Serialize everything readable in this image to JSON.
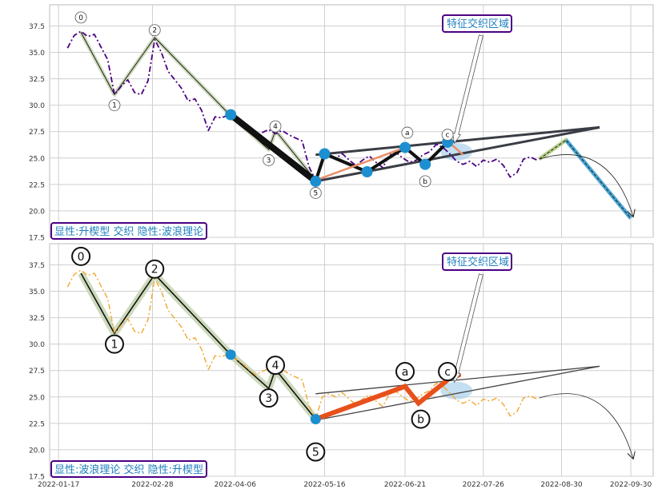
{
  "chart_data": [
    {
      "type": "line",
      "panel": "top",
      "x_ticks": [],
      "y_ticks": [
        "17.5",
        "20.0",
        "22.5",
        "25.0",
        "27.5",
        "30.0",
        "32.5",
        "35.0",
        "37.5"
      ],
      "ylim": [
        17.5,
        39.5
      ],
      "xlim": [
        "2022-01-13",
        "2022-10-10"
      ],
      "grid": true,
      "caption": "显性:升楔型 交织 隐性:波浪理论",
      "annotation": "特征交织区域",
      "price_series": {
        "color": "#4b0082",
        "style": "dashdot",
        "points": [
          [
            "2022-01-21",
            35.4
          ],
          [
            "2022-01-24",
            36.6
          ],
          [
            "2022-01-27",
            37.0
          ],
          [
            "2022-01-30",
            36.5
          ],
          [
            "2022-02-02",
            36.7
          ],
          [
            "2022-02-05",
            35.5
          ],
          [
            "2022-02-08",
            34.3
          ],
          [
            "2022-02-11",
            31.0
          ],
          [
            "2022-02-14",
            31.8
          ],
          [
            "2022-02-17",
            32.4
          ],
          [
            "2022-02-20",
            31.2
          ],
          [
            "2022-02-23",
            31.0
          ],
          [
            "2022-02-26",
            32.3
          ],
          [
            "2022-03-01",
            36.2
          ],
          [
            "2022-03-04",
            35.0
          ],
          [
            "2022-03-07",
            33.2
          ],
          [
            "2022-03-10",
            32.4
          ],
          [
            "2022-03-13",
            31.6
          ],
          [
            "2022-03-16",
            30.4
          ],
          [
            "2022-03-19",
            30.6
          ],
          [
            "2022-03-22",
            29.5
          ],
          [
            "2022-03-25",
            27.6
          ],
          [
            "2022-03-28",
            28.9
          ],
          [
            "2022-03-31",
            28.8
          ],
          [
            "2022-04-03",
            29.1
          ],
          [
            "2022-04-06",
            28.6
          ],
          [
            "2022-04-09",
            28.2
          ],
          [
            "2022-04-12",
            27.6
          ],
          [
            "2022-04-15",
            27.1
          ],
          [
            "2022-04-18",
            27.4
          ],
          [
            "2022-04-21",
            27.7
          ],
          [
            "2022-04-24",
            27.3
          ],
          [
            "2022-04-27",
            27.6
          ],
          [
            "2022-04-30",
            27.2
          ],
          [
            "2022-05-03",
            26.9
          ],
          [
            "2022-05-06",
            26.6
          ],
          [
            "2022-05-09",
            24.2
          ],
          [
            "2022-05-12",
            22.9
          ],
          [
            "2022-05-15",
            25.0
          ],
          [
            "2022-05-18",
            25.3
          ],
          [
            "2022-05-21",
            25.0
          ],
          [
            "2022-05-24",
            25.4
          ],
          [
            "2022-05-27",
            24.8
          ],
          [
            "2022-05-30",
            24.3
          ],
          [
            "2022-06-02",
            24.8
          ],
          [
            "2022-06-05",
            25.2
          ],
          [
            "2022-06-08",
            24.6
          ],
          [
            "2022-06-11",
            24.1
          ],
          [
            "2022-06-14",
            25.3
          ],
          [
            "2022-06-17",
            25.5
          ],
          [
            "2022-06-20",
            25.0
          ],
          [
            "2022-06-23",
            24.6
          ],
          [
            "2022-06-26",
            24.8
          ],
          [
            "2022-06-29",
            25.3
          ],
          [
            "2022-07-02",
            25.6
          ],
          [
            "2022-07-05",
            26.3
          ],
          [
            "2022-07-08",
            26.0
          ],
          [
            "2022-07-11",
            25.4
          ],
          [
            "2022-07-14",
            24.7
          ],
          [
            "2022-07-17",
            24.4
          ],
          [
            "2022-07-20",
            24.7
          ],
          [
            "2022-07-23",
            24.2
          ],
          [
            "2022-07-26",
            24.8
          ],
          [
            "2022-07-29",
            24.6
          ],
          [
            "2022-08-01",
            24.9
          ],
          [
            "2022-08-04",
            24.3
          ],
          [
            "2022-08-07",
            23.2
          ],
          [
            "2022-08-10",
            23.6
          ],
          [
            "2022-08-13",
            24.9
          ],
          [
            "2022-08-16",
            25.1
          ],
          [
            "2022-08-19",
            24.8
          ]
        ]
      },
      "wave_labels": [
        {
          "text": "0",
          "x": "2022-01-27",
          "y": 38.3
        },
        {
          "text": "1",
          "x": "2022-02-11",
          "y": 30.0
        },
        {
          "text": "2",
          "x": "2022-03-01",
          "y": 37.1
        },
        {
          "text": "3",
          "x": "2022-04-21",
          "y": 24.8
        },
        {
          "text": "4",
          "x": "2022-04-24",
          "y": 28.0
        },
        {
          "text": "5",
          "x": "2022-05-12",
          "y": 21.7
        },
        {
          "text": "a",
          "x": "2022-06-22",
          "y": 27.4
        },
        {
          "text": "b",
          "x": "2022-06-30",
          "y": 22.8
        },
        {
          "text": "c",
          "x": "2022-07-10",
          "y": 27.2
        }
      ],
      "elliott_path": [
        [
          "2022-01-27",
          36.9
        ],
        [
          "2022-02-11",
          31.0
        ],
        [
          "2022-03-01",
          36.4
        ],
        [
          "2022-04-04",
          29.0
        ],
        [
          "2022-04-21",
          25.8
        ],
        [
          "2022-04-24",
          27.6
        ],
        [
          "2022-05-12",
          22.9
        ]
      ],
      "thick_segments": [
        [
          [
            "2022-04-04",
            29.1
          ],
          [
            "2022-05-12",
            22.8
          ]
        ],
        [
          [
            "2022-05-12",
            22.8
          ],
          [
            "2022-05-16",
            25.4
          ]
        ],
        [
          [
            "2022-05-16",
            25.4
          ],
          [
            "2022-06-04",
            23.7
          ]
        ],
        [
          [
            "2022-06-04",
            23.7
          ],
          [
            "2022-06-21",
            26.0
          ]
        ],
        [
          [
            "2022-06-21",
            26.0
          ],
          [
            "2022-06-30",
            24.4
          ]
        ],
        [
          [
            "2022-06-30",
            24.4
          ],
          [
            "2022-07-10",
            26.5
          ]
        ]
      ],
      "orange_segments": [
        [
          [
            "2022-05-12",
            22.9
          ],
          [
            "2022-06-21",
            26.0
          ]
        ],
        [
          [
            "2022-07-10",
            26.6
          ],
          [
            "2022-07-17",
            25.3
          ]
        ]
      ],
      "blue_dots": [
        [
          "2022-04-04",
          29.1
        ],
        [
          "2022-05-12",
          22.8
        ],
        [
          "2022-05-16",
          25.4
        ],
        [
          "2022-06-04",
          23.7
        ],
        [
          "2022-06-21",
          26.0
        ],
        [
          "2022-06-30",
          24.4
        ],
        [
          "2022-07-10",
          26.5
        ]
      ],
      "wedge_lines": [
        [
          [
            "2022-05-12",
            25.3
          ],
          [
            "2022-09-16",
            27.9
          ]
        ],
        [
          [
            "2022-05-12",
            22.8
          ],
          [
            "2022-09-16",
            27.9
          ]
        ]
      ],
      "highlight_ellipse": {
        "x": "2022-07-14",
        "y": 25.6
      },
      "projection": [
        [
          "2022-08-20",
          24.9
        ],
        [
          "2022-09-01",
          26.7
        ],
        [
          "2022-09-30",
          19.3
        ]
      ],
      "curve_arrow": {
        "from": [
          "2022-08-20",
          24.9
        ],
        "control": [
          "2022-09-20",
          25.4
        ],
        "to": [
          "2022-10-01",
          19.5
        ]
      },
      "label_arrow": {
        "from": [
          "2022-07-25",
          36.6
        ],
        "to": [
          "2022-07-13",
          26.4
        ]
      }
    },
    {
      "type": "line",
      "panel": "bottom",
      "x_ticks": [
        "2022-01-17",
        "2022-02-28",
        "2022-04-06",
        "2022-05-16",
        "2022-06-21",
        "2022-07-26",
        "2022-08-30",
        "2022-09-30"
      ],
      "y_ticks": [
        "17.5",
        "20.0",
        "22.5",
        "25.0",
        "27.5",
        "30.0",
        "32.5",
        "35.0",
        "37.5"
      ],
      "ylim": [
        17.5,
        39.5
      ],
      "xlim": [
        "2022-01-13",
        "2022-10-10"
      ],
      "grid": true,
      "caption": "显性:波浪理论 交织 隐性:升楔型",
      "annotation": "特征交织区域",
      "price_series": {
        "color": "#f0a830",
        "style": "dashdot",
        "points": [
          [
            "2022-01-21",
            35.4
          ],
          [
            "2022-01-24",
            36.6
          ],
          [
            "2022-01-27",
            37.0
          ],
          [
            "2022-01-30",
            36.5
          ],
          [
            "2022-02-02",
            36.7
          ],
          [
            "2022-02-05",
            35.5
          ],
          [
            "2022-02-08",
            34.3
          ],
          [
            "2022-02-11",
            31.0
          ],
          [
            "2022-02-14",
            31.8
          ],
          [
            "2022-02-17",
            32.4
          ],
          [
            "2022-02-20",
            31.2
          ],
          [
            "2022-02-23",
            31.0
          ],
          [
            "2022-02-26",
            32.3
          ],
          [
            "2022-03-01",
            36.2
          ],
          [
            "2022-03-04",
            35.0
          ],
          [
            "2022-03-07",
            33.2
          ],
          [
            "2022-03-10",
            32.4
          ],
          [
            "2022-03-13",
            31.6
          ],
          [
            "2022-03-16",
            30.4
          ],
          [
            "2022-03-19",
            30.6
          ],
          [
            "2022-03-22",
            29.5
          ],
          [
            "2022-03-25",
            27.6
          ],
          [
            "2022-03-28",
            28.9
          ],
          [
            "2022-03-31",
            28.8
          ],
          [
            "2022-04-03",
            29.1
          ],
          [
            "2022-04-06",
            28.6
          ],
          [
            "2022-04-09",
            28.2
          ],
          [
            "2022-04-12",
            27.6
          ],
          [
            "2022-04-15",
            27.1
          ],
          [
            "2022-04-18",
            27.4
          ],
          [
            "2022-04-21",
            27.7
          ],
          [
            "2022-04-24",
            27.3
          ],
          [
            "2022-04-27",
            27.6
          ],
          [
            "2022-04-30",
            27.2
          ],
          [
            "2022-05-03",
            26.9
          ],
          [
            "2022-05-06",
            26.6
          ],
          [
            "2022-05-09",
            24.2
          ],
          [
            "2022-05-12",
            22.9
          ],
          [
            "2022-05-15",
            25.0
          ],
          [
            "2022-05-18",
            25.3
          ],
          [
            "2022-05-21",
            25.0
          ],
          [
            "2022-05-24",
            25.4
          ],
          [
            "2022-05-27",
            24.8
          ],
          [
            "2022-05-30",
            24.3
          ],
          [
            "2022-06-02",
            24.8
          ],
          [
            "2022-06-05",
            25.2
          ],
          [
            "2022-06-08",
            24.6
          ],
          [
            "2022-06-11",
            24.1
          ],
          [
            "2022-06-14",
            25.3
          ],
          [
            "2022-06-17",
            25.5
          ],
          [
            "2022-06-20",
            25.0
          ],
          [
            "2022-06-23",
            24.6
          ],
          [
            "2022-06-26",
            24.8
          ],
          [
            "2022-06-29",
            25.3
          ],
          [
            "2022-07-02",
            25.6
          ],
          [
            "2022-07-05",
            26.3
          ],
          [
            "2022-07-08",
            26.0
          ],
          [
            "2022-07-11",
            25.4
          ],
          [
            "2022-07-14",
            24.7
          ],
          [
            "2022-07-17",
            24.4
          ],
          [
            "2022-07-20",
            24.7
          ],
          [
            "2022-07-23",
            24.2
          ],
          [
            "2022-07-26",
            24.8
          ],
          [
            "2022-07-29",
            24.6
          ],
          [
            "2022-08-01",
            24.9
          ],
          [
            "2022-08-04",
            24.3
          ],
          [
            "2022-08-07",
            23.2
          ],
          [
            "2022-08-10",
            23.6
          ],
          [
            "2022-08-13",
            24.9
          ],
          [
            "2022-08-16",
            25.1
          ],
          [
            "2022-08-19",
            24.8
          ]
        ]
      },
      "wave_labels": [
        {
          "text": "0",
          "x": "2022-01-27",
          "y": 38.3
        },
        {
          "text": "1",
          "x": "2022-02-11",
          "y": 30.0
        },
        {
          "text": "2",
          "x": "2022-03-01",
          "y": 37.1
        },
        {
          "text": "3",
          "x": "2022-04-21",
          "y": 24.9
        },
        {
          "text": "4",
          "x": "2022-04-24",
          "y": 28.0
        },
        {
          "text": "5",
          "x": "2022-05-12",
          "y": 19.8
        },
        {
          "text": "a",
          "x": "2022-06-21",
          "y": 27.4
        },
        {
          "text": "b",
          "x": "2022-06-28",
          "y": 22.9
        },
        {
          "text": "c",
          "x": "2022-07-10",
          "y": 27.4
        }
      ],
      "elliott_path": [
        [
          "2022-01-27",
          36.7
        ],
        [
          "2022-02-11",
          31.0
        ],
        [
          "2022-03-01",
          36.6
        ],
        [
          "2022-04-04",
          29.0
        ],
        [
          "2022-04-21",
          25.8
        ],
        [
          "2022-04-24",
          27.6
        ],
        [
          "2022-05-12",
          22.9
        ]
      ],
      "red_path": [
        [
          "2022-05-12",
          22.9
        ],
        [
          "2022-06-21",
          26.0
        ],
        [
          "2022-06-27",
          24.4
        ],
        [
          "2022-07-10",
          26.6
        ]
      ],
      "blue_dots": [
        [
          "2022-04-04",
          29.0
        ],
        [
          "2022-05-12",
          22.9
        ]
      ],
      "wedge_lines": [
        [
          [
            "2022-05-12",
            25.3
          ],
          [
            "2022-09-16",
            27.9
          ]
        ],
        [
          [
            "2022-05-12",
            22.8
          ],
          [
            "2022-09-16",
            27.9
          ]
        ]
      ],
      "highlight_ellipse": {
        "x": "2022-07-14",
        "y": 25.6
      },
      "curve_arrow": {
        "from": [
          "2022-08-20",
          24.9
        ],
        "control": [
          "2022-09-20",
          25.4
        ],
        "to": [
          "2022-10-01",
          19.2
        ]
      },
      "label_arrow": {
        "from": [
          "2022-07-25",
          36.6
        ],
        "to": [
          "2022-07-13",
          26.4
        ]
      }
    }
  ]
}
